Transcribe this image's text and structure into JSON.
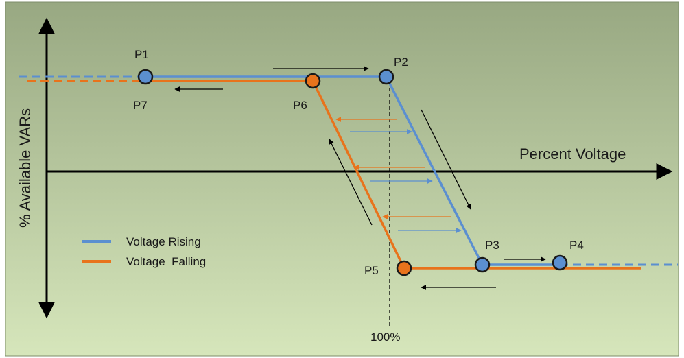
{
  "diagram": {
    "x_axis_label": "Percent Voltage",
    "y_axis_label": "% Available VARs",
    "reference_label": "100%",
    "colors": {
      "rising": "#5b8fd0",
      "falling": "#e8731c",
      "point_outline": "#1a1a1a",
      "axis": "#000000",
      "background_top": "#98a882",
      "background_bottom": "#d6e6bb"
    },
    "points": {
      "p1": "P1",
      "p2": "P2",
      "p3": "P3",
      "p4": "P4",
      "p5": "P5",
      "p6": "P6",
      "p7": "P7"
    },
    "legend": {
      "rising": "Voltage Rising",
      "falling": "Voltage  Falling"
    }
  }
}
